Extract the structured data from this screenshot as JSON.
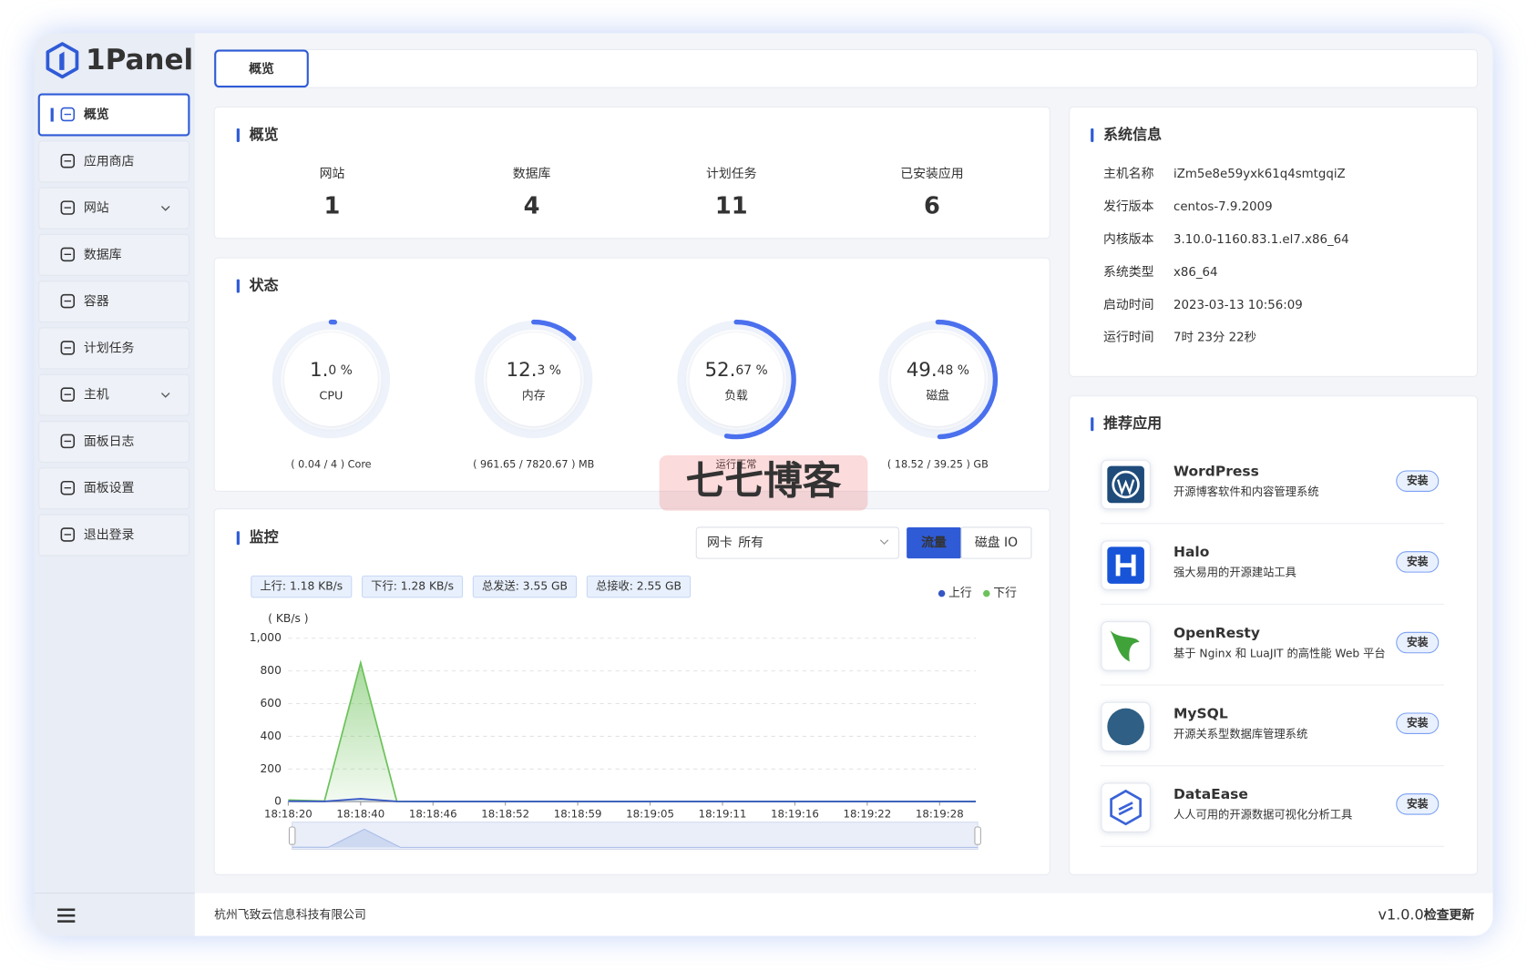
{
  "brand": "1Panel",
  "menu": [
    "概览",
    "应用商店",
    "网站",
    "数据库",
    "容器",
    "计划任务",
    "主机",
    "面板日志",
    "面板设置",
    "退出登录"
  ],
  "tab": "概览",
  "overview": {
    "title": "概览",
    "items": [
      {
        "label": "网站",
        "count": 1
      },
      {
        "label": "数据库",
        "count": 4
      },
      {
        "label": "计划任务",
        "count": 11
      },
      {
        "label": "已安装应用",
        "count": 6
      }
    ]
  },
  "status": {
    "title": "状态",
    "gauges": [
      {
        "value": 1.0,
        "main": "1.",
        "frac": "0 %",
        "label": "CPU",
        "detail": "( 0.04 / 4 ) Core"
      },
      {
        "value": 12.3,
        "main": "12.",
        "frac": "3 %",
        "label": "内存",
        "detail": "( 961.65 / 7820.67 ) MB"
      },
      {
        "value": 52.67,
        "main": "52.",
        "frac": "67 %",
        "label": "负载",
        "detail": "运行正常"
      },
      {
        "value": 49.48,
        "main": "49.",
        "frac": "48 %",
        "label": "磁盘",
        "detail": "( 18.52 / 39.25 ) GB"
      }
    ]
  },
  "monitor": {
    "title": "监控",
    "select_label": "网卡",
    "select_value": "所有",
    "tabs": [
      "流量",
      "磁盘 IO"
    ],
    "stats": [
      "上行: 1.18 KB/s",
      "下行: 1.28 KB/s",
      "总发送: 3.55 GB",
      "总接收: 2.55 GB"
    ]
  },
  "chart_data": {
    "type": "area",
    "y_label": "( KB/s )",
    "categories": [
      "18:18:20",
      null,
      "18:18:40",
      null,
      "18:18:46",
      null,
      "18:18:52",
      null,
      "18:18:59",
      null,
      "18:19:05",
      null,
      "18:19:11",
      null,
      "18:19:16",
      null,
      "18:19:22",
      null,
      "18:19:28",
      null
    ],
    "series": [
      {
        "name": "上行",
        "color": "#3556c4",
        "values": [
          3,
          2,
          18,
          2,
          1,
          1,
          1,
          1,
          1,
          1,
          1,
          1,
          1,
          1,
          1,
          1,
          1,
          1,
          1,
          1
        ]
      },
      {
        "name": "下行",
        "color": "#6cc25a",
        "values": [
          10,
          4,
          850,
          2,
          1,
          1,
          1,
          1,
          1,
          1,
          1,
          1,
          1,
          1,
          1,
          1,
          1,
          1,
          1,
          1
        ]
      }
    ],
    "ylim": [
      0,
      1000
    ],
    "yticks": [
      0,
      200,
      400,
      600,
      800,
      {
        "value": 1000,
        "label": "1,000"
      }
    ],
    "grid": true
  },
  "sysinfo": {
    "title": "系统信息",
    "rows": [
      [
        "主机名称",
        "iZm5e8e59yxk61q4smtgqiZ"
      ],
      [
        "发行版本",
        "centos-7.9.2009"
      ],
      [
        "内核版本",
        "3.10.0-1160.83.1.el7.x86_64"
      ],
      [
        "系统类型",
        "x86_64"
      ],
      [
        "启动时间",
        "2023-03-13 10:56:09"
      ],
      [
        "运行时间",
        "7时 23分 22秒"
      ]
    ]
  },
  "apps": {
    "title": "推荐应用",
    "install": "安装",
    "items": [
      {
        "name": "WordPress",
        "desc": "开源博客软件和内容管理系统"
      },
      {
        "name": "Halo",
        "desc": "强大易用的开源建站工具"
      },
      {
        "name": "OpenResty",
        "desc": "基于 Nginx 和 LuaJIT 的高性能 Web 平台"
      },
      {
        "name": "MySQL",
        "desc": "开源关系型数据库管理系统"
      },
      {
        "name": "DataEase",
        "desc": "人人可用的开源数据可视化分析工具"
      }
    ]
  },
  "footer": {
    "company": "杭州飞致云信息科技有限公司",
    "version": "v1.0.0",
    "update": "检查更新"
  },
  "watermark": "七七博客"
}
